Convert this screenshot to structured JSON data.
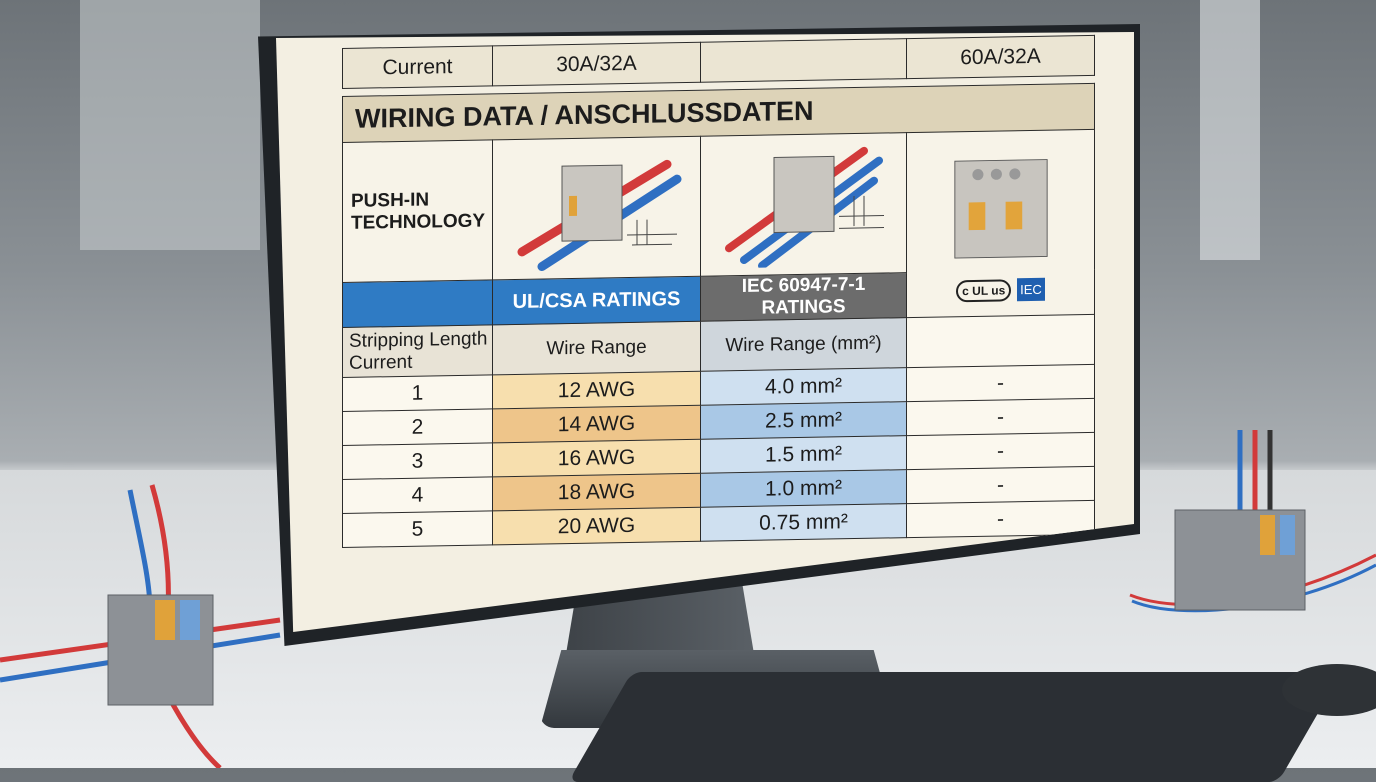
{
  "screen": {
    "top_row": [
      "Current",
      "30A/32A",
      "",
      "60A/32A"
    ],
    "title": "WIRING DATA / ANSCHLUSSDATEN",
    "technology_label": "PUSH-IN TECHNOLOGY",
    "ratings": {
      "ul_csa": "UL/CSA RATINGS",
      "iec": "IEC 60947-7-1 RATINGS"
    },
    "certifications": {
      "ul_mark": "c UL us",
      "iec_mark": "IEC"
    },
    "headers": [
      "Stripping Length Current",
      "Wire Range",
      "Wire Range (mm²)",
      ""
    ],
    "rows": [
      {
        "index": "1",
        "awg": "12 AWG",
        "mm2": "4.0 mm²",
        "extra": "-"
      },
      {
        "index": "2",
        "awg": "14 AWG",
        "mm2": "2.5 mm²",
        "extra": "-"
      },
      {
        "index": "3",
        "awg": "16 AWG",
        "mm2": "1.5 mm²",
        "extra": "-"
      },
      {
        "index": "4",
        "awg": "18 AWG",
        "mm2": "1.0 mm²",
        "extra": "-"
      },
      {
        "index": "5",
        "awg": "20 AWG",
        "mm2": "0.75 mm²",
        "extra": "-"
      }
    ]
  },
  "colors": {
    "ul_blue": "#2f7bc4",
    "iec_grey": "#6c6c6c",
    "awg_orange": "#eec58a",
    "mm2_blue": "#a9c8e6",
    "wire_red": "#d23a3a",
    "wire_blue": "#2f6fc2"
  }
}
